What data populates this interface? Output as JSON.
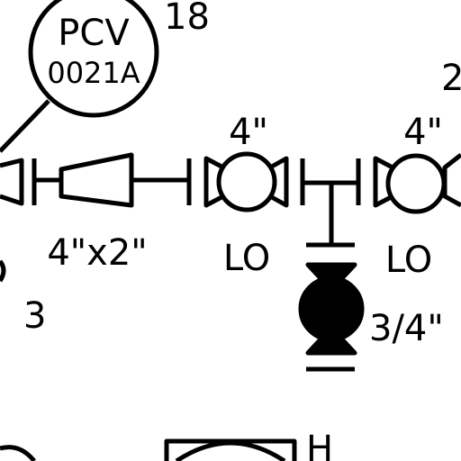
{
  "colors": {
    "line": "#000000",
    "background": "#ffffff"
  },
  "instrument": {
    "tag_function": "PCV",
    "tag_number": "0021A",
    "ref_number": "18"
  },
  "edge_labels": {
    "top_right": "2",
    "left": "3",
    "bottom_right": "H"
  },
  "reducer": {
    "size_label": "4\"x2\""
  },
  "valves": [
    {
      "size_label": "4\"",
      "position_label": "LO"
    },
    {
      "size_label": "4\"",
      "position_label": "LO"
    }
  ],
  "drain_valve": {
    "size_label": "3/4\""
  }
}
